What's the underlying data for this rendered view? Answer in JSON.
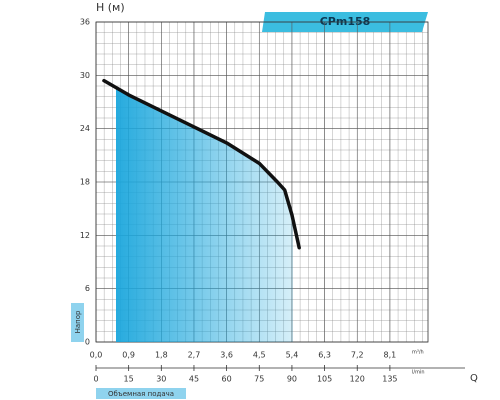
{
  "chart_data": {
    "type": "area",
    "title": "CPm158",
    "y_label": "H (м)",
    "y_badge": "Напор",
    "x_label": "Q",
    "x2_badge": "Объемная подача",
    "x_unit": "m³/h",
    "x2_unit": "l/min",
    "series": [
      {
        "name": "CPm158",
        "color": "#111111",
        "x": [
          0.22,
          0.9,
          1.8,
          2.7,
          3.6,
          4.5,
          5.0,
          5.2,
          5.4,
          5.6
        ],
        "values": [
          29.4,
          27.8,
          26.0,
          24.2,
          22.4,
          20.1,
          18.0,
          17.1,
          14.3,
          10.6
        ]
      }
    ],
    "fill_color": "#1aa6dc",
    "xlim": [
      0,
      9.15
    ],
    "ylim": [
      0,
      36
    ],
    "x2lim": [
      0,
      152.5
    ],
    "xticks": [
      {
        "value": 0,
        "label": "0,0"
      },
      {
        "value": 0.9,
        "label": "0,9"
      },
      {
        "value": 1.8,
        "label": "1,8"
      },
      {
        "value": 2.7,
        "label": "2,7"
      },
      {
        "value": 3.6,
        "label": "3,6"
      },
      {
        "value": 4.5,
        "label": "4,5"
      },
      {
        "value": 5.4,
        "label": "5,4"
      },
      {
        "value": 6.3,
        "label": "6,3"
      },
      {
        "value": 7.2,
        "label": "7,2"
      },
      {
        "value": 8.1,
        "label": "8,1"
      }
    ],
    "yticks": [
      0,
      6,
      12,
      18,
      24,
      30,
      36
    ],
    "x2ticks": [
      0,
      15,
      30,
      45,
      60,
      75,
      90,
      105,
      120,
      135
    ],
    "grid": true
  }
}
